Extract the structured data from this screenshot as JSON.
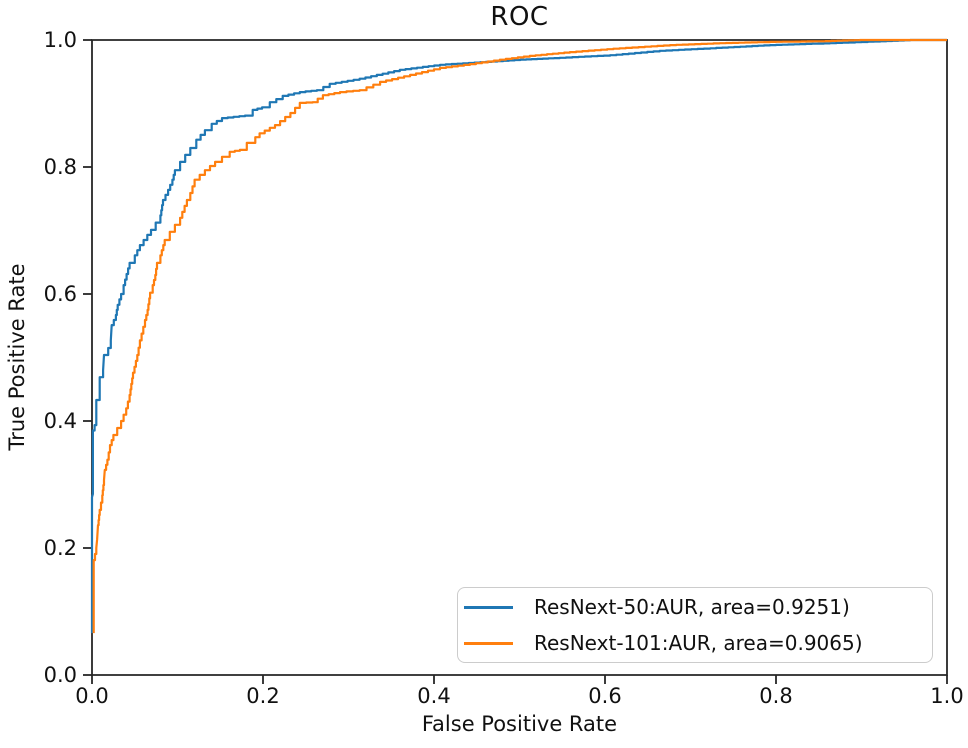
{
  "title": "ROC",
  "xlabel": "False Positive Rate",
  "ylabel": "True Positive Rate",
  "colors": {
    "series_blue": "#1f77b4",
    "series_orange": "#ff7f0e",
    "spine": "#262626",
    "text": "#111111",
    "legend_border": "#cccccc",
    "background": "#ffffff"
  },
  "axes": {
    "x_tick_labels": [
      "0.0",
      "0.2",
      "0.4",
      "0.6",
      "0.8",
      "1.0"
    ],
    "y_tick_labels": [
      "0.0",
      "0.2",
      "0.4",
      "0.6",
      "0.8",
      "1.0"
    ]
  },
  "legend": [
    {
      "label": "ResNext-50:AUR, area=0.9251)",
      "color": "#1f77b4"
    },
    {
      "label": "ResNext-101:AUR, area=0.9065)",
      "color": "#ff7f0e"
    }
  ],
  "chart_data": {
    "type": "line",
    "title": "ROC",
    "xlabel": "False Positive Rate",
    "ylabel": "True Positive Rate",
    "xlim": [
      0,
      1
    ],
    "ylim": [
      0,
      1
    ],
    "grid": false,
    "legend_position": "lower right",
    "x_ticks": [
      0,
      0.2,
      0.4,
      0.6,
      0.8,
      1.0
    ],
    "y_ticks": [
      0,
      0.2,
      0.4,
      0.6,
      0.8,
      1.0
    ],
    "curve_style": "step",
    "series": [
      {
        "name": "ResNext-50:AUR, area=0.9251)",
        "color": "#1f77b4",
        "area": 0.9251,
        "points": [
          [
            0,
            0.066
          ],
          [
            0,
            0.28
          ],
          [
            0.001,
            0.285
          ],
          [
            0.001,
            0.385
          ],
          [
            0.005,
            0.402
          ],
          [
            0.005,
            0.433
          ],
          [
            0.009,
            0.441
          ],
          [
            0.009,
            0.469
          ],
          [
            0.013,
            0.48
          ],
          [
            0.014,
            0.504
          ],
          [
            0.019,
            0.515
          ],
          [
            0.022,
            0.527
          ],
          [
            0.023,
            0.551
          ],
          [
            0.028,
            0.567
          ],
          [
            0.03,
            0.583
          ],
          [
            0.034,
            0.6
          ],
          [
            0.037,
            0.614
          ],
          [
            0.044,
            0.649
          ],
          [
            0.05,
            0.661
          ],
          [
            0.056,
            0.677
          ],
          [
            0.069,
            0.701
          ],
          [
            0.08,
            0.724
          ],
          [
            0.083,
            0.748
          ],
          [
            0.089,
            0.764
          ],
          [
            0.094,
            0.78
          ],
          [
            0.097,
            0.795
          ],
          [
            0.103,
            0.808
          ],
          [
            0.109,
            0.819
          ],
          [
            0.115,
            0.83
          ],
          [
            0.122,
            0.843
          ],
          [
            0.132,
            0.858
          ],
          [
            0.14,
            0.868
          ],
          [
            0.152,
            0.877
          ],
          [
            0.179,
            0.881
          ],
          [
            0.188,
            0.89
          ],
          [
            0.199,
            0.894
          ],
          [
            0.208,
            0.902
          ],
          [
            0.223,
            0.912
          ],
          [
            0.243,
            0.918
          ],
          [
            0.263,
            0.921
          ],
          [
            0.278,
            0.931
          ],
          [
            0.313,
            0.939
          ],
          [
            0.36,
            0.953
          ],
          [
            0.407,
            0.961
          ],
          [
            0.454,
            0.965
          ],
          [
            0.501,
            0.969
          ],
          [
            0.547,
            0.972
          ],
          [
            0.606,
            0.976
          ],
          [
            0.664,
            0.983
          ],
          [
            0.723,
            0.987
          ],
          [
            0.793,
            0.992
          ],
          [
            0.863,
            0.995
          ],
          [
            0.922,
            0.998
          ],
          [
            0.957,
            1
          ],
          [
            1,
            1
          ]
        ]
      },
      {
        "name": "ResNext-101:AUR, area=0.9065)",
        "color": "#ff7f0e",
        "area": 0.9065,
        "points": [
          [
            0.002,
            0.066
          ],
          [
            0.002,
            0.181
          ],
          [
            0.005,
            0.2
          ],
          [
            0.006,
            0.213
          ],
          [
            0.007,
            0.236
          ],
          [
            0.009,
            0.26
          ],
          [
            0.012,
            0.283
          ],
          [
            0.014,
            0.307
          ],
          [
            0.015,
            0.323
          ],
          [
            0.018,
            0.339
          ],
          [
            0.021,
            0.362
          ],
          [
            0.025,
            0.378
          ],
          [
            0.034,
            0.4
          ],
          [
            0.04,
            0.42
          ],
          [
            0.044,
            0.441
          ],
          [
            0.048,
            0.476
          ],
          [
            0.053,
            0.504
          ],
          [
            0.056,
            0.527
          ],
          [
            0.062,
            0.559
          ],
          [
            0.065,
            0.575
          ],
          [
            0.068,
            0.602
          ],
          [
            0.071,
            0.614
          ],
          [
            0.074,
            0.63
          ],
          [
            0.076,
            0.649
          ],
          [
            0.08,
            0.661
          ],
          [
            0.085,
            0.685
          ],
          [
            0.091,
            0.698
          ],
          [
            0.097,
            0.709
          ],
          [
            0.103,
            0.72
          ],
          [
            0.111,
            0.748
          ],
          [
            0.115,
            0.759
          ],
          [
            0.12,
            0.78
          ],
          [
            0.132,
            0.795
          ],
          [
            0.144,
            0.808
          ],
          [
            0.152,
            0.816
          ],
          [
            0.161,
            0.824
          ],
          [
            0.173,
            0.827
          ],
          [
            0.181,
            0.838
          ],
          [
            0.191,
            0.847
          ],
          [
            0.196,
            0.853
          ],
          [
            0.214,
            0.866
          ],
          [
            0.232,
            0.885
          ],
          [
            0.243,
            0.901
          ],
          [
            0.258,
            0.902
          ],
          [
            0.27,
            0.913
          ],
          [
            0.29,
            0.918
          ],
          [
            0.313,
            0.921
          ],
          [
            0.337,
            0.934
          ],
          [
            0.372,
            0.945
          ],
          [
            0.407,
            0.956
          ],
          [
            0.442,
            0.962
          ],
          [
            0.477,
            0.969
          ],
          [
            0.512,
            0.975
          ],
          [
            0.559,
            0.981
          ],
          [
            0.617,
            0.987
          ],
          [
            0.676,
            0.992
          ],
          [
            0.734,
            0.995
          ],
          [
            0.793,
            0.997
          ],
          [
            0.851,
            0.998
          ],
          [
            0.898,
            1
          ],
          [
            1,
            1
          ]
        ]
      }
    ]
  }
}
